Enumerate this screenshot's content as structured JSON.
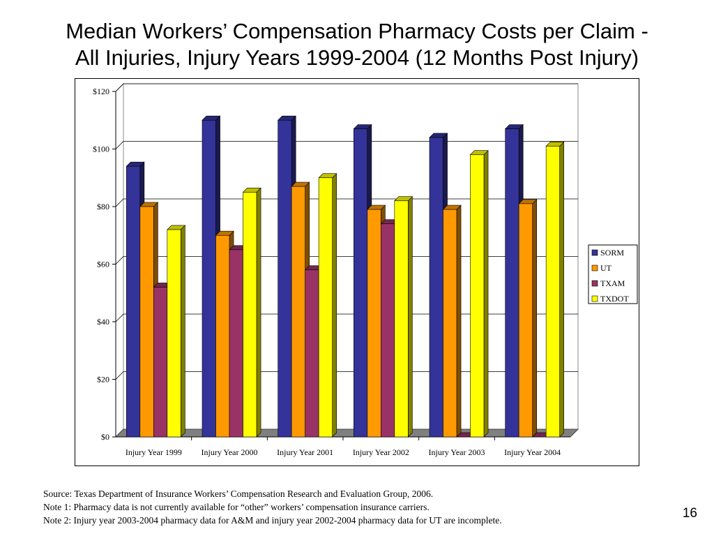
{
  "title": {
    "line1": "Median Workers’ Compensation Pharmacy Costs per Claim -",
    "line2": "All Injuries, Injury Years 1999-2004 (12 Months Post Injury)"
  },
  "chart_data": {
    "type": "bar",
    "categories": [
      "Injury Year 1999",
      "Injury Year 2000",
      "Injury Year 2001",
      "Injury Year 2002",
      "Injury Year 2003",
      "Injury Year 2004"
    ],
    "series": [
      {
        "name": "SORM",
        "color": "#333399",
        "values": [
          94,
          110,
          110,
          107,
          104,
          107
        ]
      },
      {
        "name": "UT",
        "color": "#FF9900",
        "values": [
          80,
          70,
          87,
          79,
          79,
          81
        ]
      },
      {
        "name": "TXAM",
        "color": "#993366",
        "values": [
          52,
          65,
          58,
          74,
          0,
          0
        ]
      },
      {
        "name": "TXDOT",
        "color": "#FFFF00",
        "values": [
          72,
          85,
          90,
          82,
          98,
          101
        ]
      }
    ],
    "yticks": [
      "$0",
      "$20",
      "$40",
      "$60",
      "$80",
      "$100",
      "$120"
    ],
    "ylim": [
      0,
      120
    ],
    "grid": true,
    "legend_position": "right",
    "three_d": true
  },
  "notes": [
    "Source: Texas Department of Insurance Workers’ Compensation Research and Evaluation Group, 2006.",
    "Note 1:  Pharmacy data is not currently available for “other” workers’ compensation insurance carriers.",
    "Note 2:  Injury year 2003-2004 pharmacy data for A&M and injury year 2002-2004 pharmacy data for UT are incomplete."
  ],
  "page_number": "16"
}
